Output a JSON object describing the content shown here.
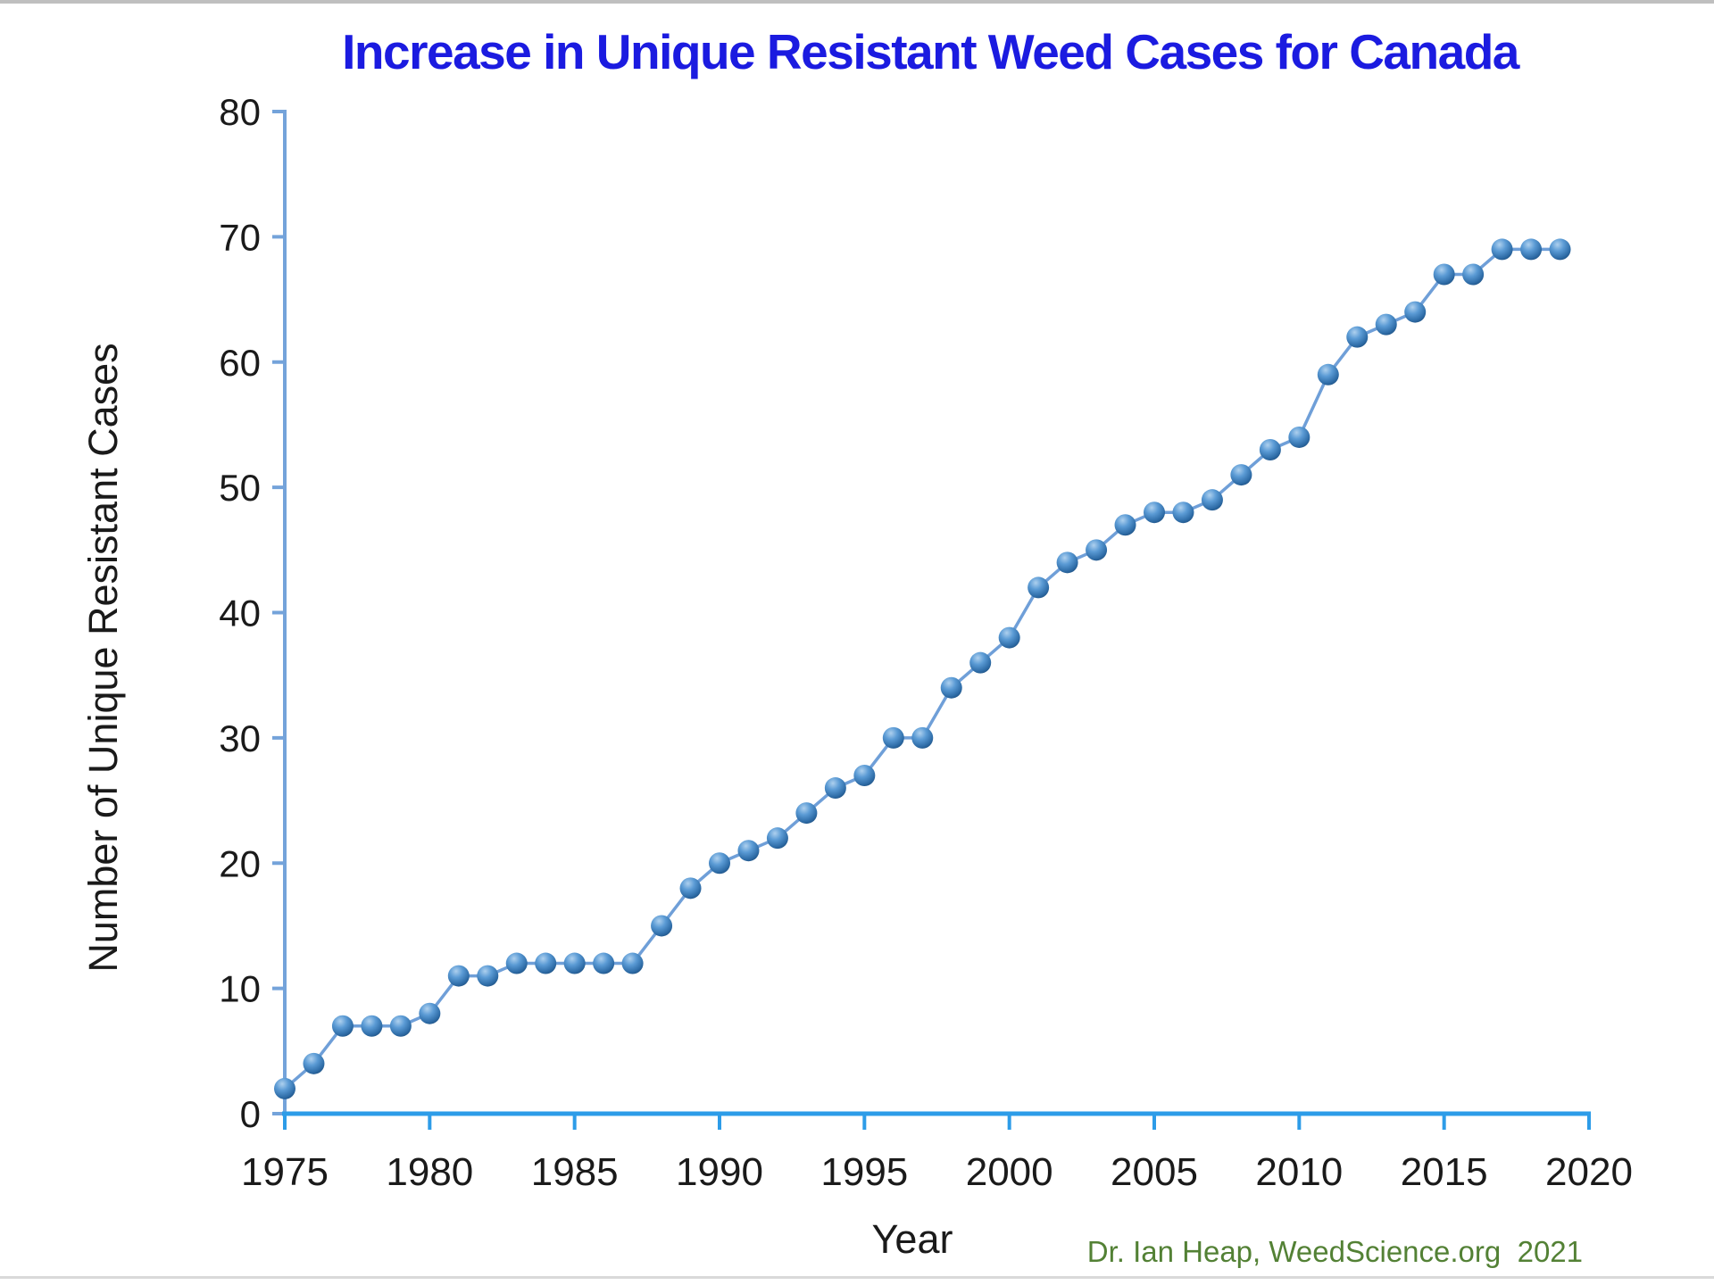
{
  "window": {
    "background": "#ffffff"
  },
  "chart_data": {
    "type": "line",
    "title": "Increase in Unique Resistant Weed Cases for Canada",
    "xlabel": "Year",
    "ylabel": "Number of Unique Resistant Cases",
    "legend": "none",
    "grid": false,
    "marker": "3d-sphere",
    "xlim": [
      1975,
      2020
    ],
    "ylim": [
      0,
      80
    ],
    "x_ticks": [
      1975,
      1980,
      1985,
      1990,
      1995,
      2000,
      2005,
      2010,
      2015,
      2020
    ],
    "y_ticks": [
      0,
      10,
      20,
      30,
      40,
      50,
      60,
      70,
      80
    ],
    "x": [
      1975,
      1976,
      1977,
      1978,
      1979,
      1980,
      1981,
      1982,
      1983,
      1984,
      1985,
      1986,
      1987,
      1988,
      1989,
      1990,
      1991,
      1992,
      1993,
      1994,
      1995,
      1996,
      1997,
      1998,
      1999,
      2000,
      2001,
      2002,
      2003,
      2004,
      2005,
      2006,
      2007,
      2008,
      2009,
      2010,
      2011,
      2012,
      2013,
      2014,
      2015,
      2016,
      2017,
      2018,
      2019
    ],
    "values": [
      2,
      4,
      7,
      7,
      7,
      8,
      11,
      11,
      12,
      12,
      12,
      12,
      12,
      15,
      18,
      20,
      21,
      22,
      24,
      26,
      27,
      30,
      30,
      34,
      36,
      38,
      42,
      44,
      45,
      47,
      48,
      48,
      49,
      51,
      53,
      54,
      59,
      62,
      63,
      64,
      67,
      67,
      69,
      69,
      69
    ]
  },
  "footer": {
    "credit": "Dr. Ian Heap, WeedScience.org  2021"
  },
  "colors": {
    "title": "#1b1be0",
    "y_axis": "#74a3da",
    "x_axis": "#2d9ce8",
    "series_line": "#6f9fd8",
    "marker_highlight": "#aed0ee",
    "marker_base": "#5b9bd5",
    "marker_mid": "#2f6da8",
    "marker_dark": "#1d4f80",
    "tick_label": "#1a1a1a",
    "credit_text": "#538135"
  }
}
